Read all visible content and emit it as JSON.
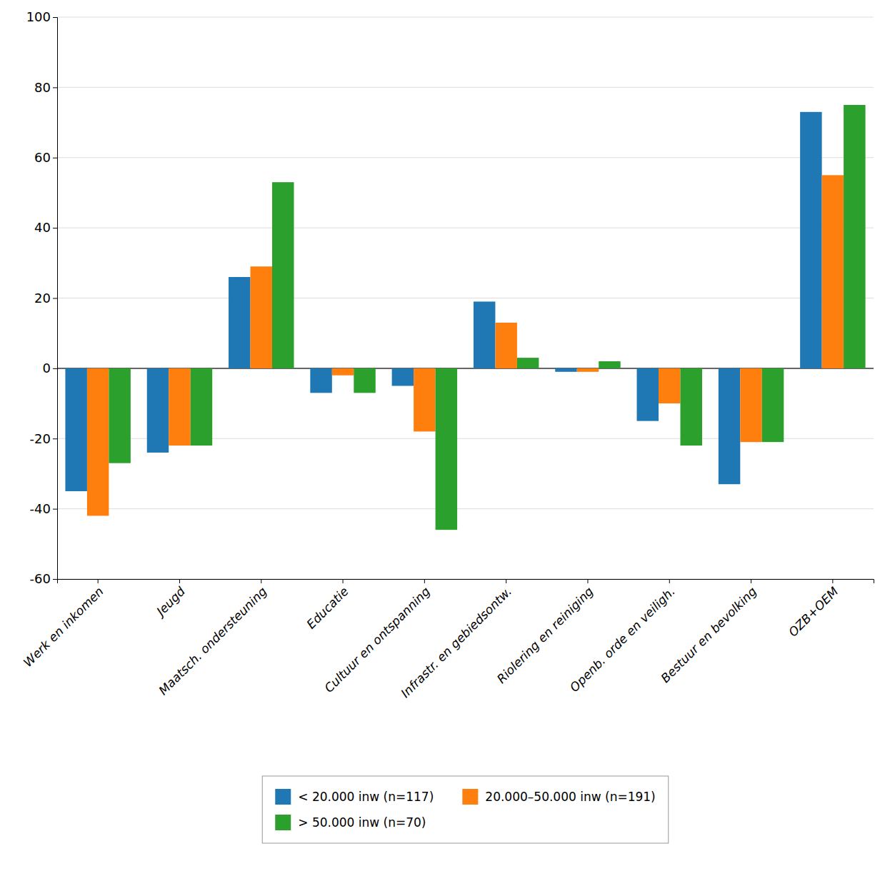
{
  "chart_data": {
    "type": "bar",
    "categories": [
      "Werk en inkomen",
      "Jeugd",
      "Maatsch. ondersteuning",
      "Educatie",
      "Cultuur en ontspanning",
      "Infrastr. en gebiedsontw.",
      "Riolering en reiniging",
      "Openb. orde en veiligh.",
      "Bestuur en bevolking",
      "OZB+OEM"
    ],
    "series": [
      {
        "name": "< 20.000 inw (n=117)",
        "values": [
          -35,
          -24,
          26,
          -7,
          -5,
          19,
          -1,
          -15,
          -33,
          73
        ]
      },
      {
        "name": "20.000–50.000 inw (n=191)",
        "values": [
          -42,
          -22,
          29,
          -2,
          -18,
          13,
          -1,
          -10,
          -21,
          55
        ]
      },
      {
        "name": "> 50.000 inw (n=70)",
        "values": [
          -27,
          -22,
          53,
          -7,
          -46,
          3,
          2,
          -22,
          -21,
          75
        ]
      }
    ],
    "ylim": [
      -60,
      100
    ],
    "yticks": [
      -60,
      -40,
      -20,
      0,
      20,
      40,
      60,
      80,
      100
    ],
    "grid": true,
    "legend": "bottom"
  }
}
